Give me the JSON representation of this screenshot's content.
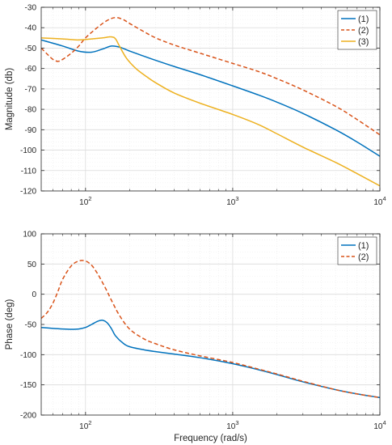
{
  "chart_data": [
    {
      "type": "line",
      "xscale": "log",
      "xlim": [
        50,
        10000
      ],
      "ylim": [
        -120,
        -30
      ],
      "xticks": [
        100,
        1000,
        10000
      ],
      "xtick_labels": [
        {
          "base": "10",
          "exp": "2"
        },
        {
          "base": "10",
          "exp": "3"
        },
        {
          "base": "10",
          "exp": "4"
        }
      ],
      "yticks": [
        -120,
        -110,
        -100,
        -90,
        -80,
        -70,
        -60,
        -50,
        -40,
        -30
      ],
      "ytick_labels": [
        "-120",
        "-110",
        "-100",
        "-90",
        "-80",
        "-70",
        "-60",
        "-50",
        "-40",
        "-30"
      ],
      "xlabel": "",
      "ylabel": "Magnitude (db)",
      "grid": true,
      "legend_position": "top-right",
      "series": [
        {
          "name": "(1)",
          "color": "#0072BD",
          "style": "solid",
          "x": [
            50,
            70,
            90,
            110,
            130,
            150,
            170,
            200,
            250,
            300,
            400,
            600,
            1000,
            1500,
            2000,
            3000,
            5000,
            7000,
            10000
          ],
          "y": [
            -46,
            -49,
            -51.5,
            -52,
            -50.5,
            -49,
            -49.5,
            -51.5,
            -54,
            -56,
            -59,
            -63,
            -68.5,
            -73,
            -76.5,
            -82,
            -90,
            -96,
            -103
          ]
        },
        {
          "name": "(2)",
          "color": "#D95319",
          "style": "dashed",
          "x": [
            50,
            55,
            60,
            65,
            70,
            80,
            90,
            100,
            120,
            140,
            160,
            180,
            200,
            250,
            300,
            400,
            600,
            1000,
            1500,
            2000,
            3000,
            5000,
            7000,
            10000
          ],
          "y": [
            -50,
            -53,
            -55.5,
            -56.5,
            -55.5,
            -52.5,
            -49,
            -45,
            -40,
            -36.5,
            -35,
            -36,
            -38,
            -42,
            -45,
            -48.5,
            -52.5,
            -57.5,
            -61.5,
            -65,
            -70.5,
            -78.5,
            -85,
            -92.5
          ]
        },
        {
          "name": "(3)",
          "color": "#EDB120",
          "style": "solid",
          "x": [
            50,
            70,
            90,
            110,
            130,
            150,
            160,
            170,
            190,
            220,
            260,
            300,
            400,
            600,
            1000,
            1500,
            2000,
            3000,
            5000,
            7000,
            10000
          ],
          "y": [
            -45,
            -45.5,
            -46,
            -45.5,
            -45,
            -44.5,
            -45.5,
            -49,
            -55,
            -60,
            -64,
            -67,
            -72,
            -77,
            -82.5,
            -87.5,
            -92,
            -98.5,
            -106,
            -111.5,
            -117.5
          ]
        }
      ]
    },
    {
      "type": "line",
      "xscale": "log",
      "xlim": [
        50,
        10000
      ],
      "ylim": [
        -200,
        100
      ],
      "xticks": [
        100,
        1000,
        10000
      ],
      "xtick_labels": [
        {
          "base": "10",
          "exp": "2"
        },
        {
          "base": "10",
          "exp": "3"
        },
        {
          "base": "10",
          "exp": "4"
        }
      ],
      "yticks": [
        -200,
        -150,
        -100,
        -50,
        0,
        50,
        100
      ],
      "ytick_labels": [
        "-200",
        "-150",
        "-100",
        "-50",
        "0",
        "50",
        "100"
      ],
      "xlabel": "Frequency (rad/s)",
      "ylabel": "Phase (deg)",
      "grid": true,
      "legend_position": "top-right",
      "series": [
        {
          "name": "(1)",
          "color": "#0072BD",
          "style": "solid",
          "x": [
            50,
            60,
            70,
            80,
            90,
            100,
            110,
            120,
            130,
            140,
            150,
            160,
            180,
            200,
            250,
            300,
            400,
            600,
            1000,
            1500,
            2000,
            3000,
            5000,
            7000,
            10000
          ],
          "y": [
            -55,
            -56.5,
            -57.5,
            -58,
            -57.5,
            -55,
            -50,
            -45,
            -43,
            -47,
            -57,
            -69,
            -81,
            -87,
            -92,
            -95,
            -99,
            -105,
            -115,
            -125,
            -133,
            -145,
            -158,
            -165,
            -171
          ]
        },
        {
          "name": "(2)",
          "color": "#D95319",
          "style": "dashed",
          "x": [
            50,
            55,
            60,
            65,
            70,
            80,
            90,
            100,
            110,
            120,
            130,
            140,
            150,
            170,
            200,
            250,
            300,
            400,
            600,
            1000,
            1500,
            2000,
            3000,
            5000,
            7000,
            10000
          ],
          "y": [
            -40,
            -30,
            -15,
            5,
            25,
            47,
            55,
            55,
            48,
            35,
            20,
            5,
            -10,
            -35,
            -58,
            -74,
            -82,
            -92,
            -102,
            -113,
            -124,
            -132,
            -144,
            -158,
            -165,
            -171
          ]
        }
      ]
    }
  ]
}
